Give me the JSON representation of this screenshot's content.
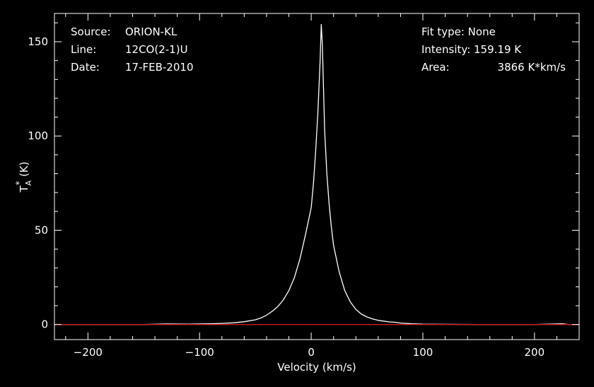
{
  "header_left": [
    {
      "key": "Source:",
      "value": "ORION-KL"
    },
    {
      "key": "Line:",
      "value": "12CO(2-1)U"
    },
    {
      "key": "Date:",
      "value": "17-FEB-2010"
    }
  ],
  "header_right": {
    "fit_label": "Fit type: None",
    "intensity_label": "Intensity: 159.19 K",
    "area_key": "Area:",
    "area_value": "3866 K*km/s"
  },
  "chart_data": {
    "type": "line",
    "xlabel": "Velocity (km/s)",
    "ylabel": "T",
    "ylabel_sub": "A",
    "ylabel_sup": "*",
    "ylabel_unit": "(K)",
    "xlim": [
      -230,
      240
    ],
    "ylim": [
      -8,
      165
    ],
    "xticks": [
      -200,
      -100,
      0,
      100,
      200
    ],
    "xtick_labels": [
      "−200",
      "−100",
      "0",
      "100",
      "200"
    ],
    "yticks": [
      0,
      50,
      100,
      150
    ],
    "ytick_labels": [
      "0",
      "50",
      "100",
      "150"
    ],
    "grid": false,
    "series": [
      {
        "color": "#ffffff",
        "x": [
          -230,
          -150,
          -130,
          -110,
          -90,
          -80,
          -70,
          -60,
          -50,
          -45,
          -40,
          -35,
          -30,
          -25,
          -20,
          -15,
          -10,
          -5,
          0,
          2,
          4,
          6,
          8,
          9,
          10,
          11,
          12,
          14,
          16,
          18,
          20,
          25,
          30,
          35,
          40,
          45,
          50,
          55,
          60,
          70,
          75,
          80,
          90,
          100,
          120,
          150,
          200,
          225,
          230,
          240
        ],
        "y": [
          0,
          0,
          0.3,
          0.2,
          0.4,
          0.6,
          0.9,
          1.5,
          2.5,
          3.5,
          5,
          7,
          9.5,
          13,
          18,
          25,
          35,
          48,
          62,
          75,
          92,
          113,
          140,
          159.19,
          148,
          125,
          103,
          80,
          64,
          52,
          42,
          28,
          18,
          12,
          8,
          5.5,
          4,
          3,
          2.2,
          1.4,
          1.2,
          0.8,
          0.4,
          0.2,
          0.1,
          0,
          0,
          0.4,
          0,
          0
        ]
      },
      {
        "color": "#d41818",
        "x": [
          -230,
          240
        ],
        "y": [
          0,
          0
        ]
      }
    ]
  }
}
